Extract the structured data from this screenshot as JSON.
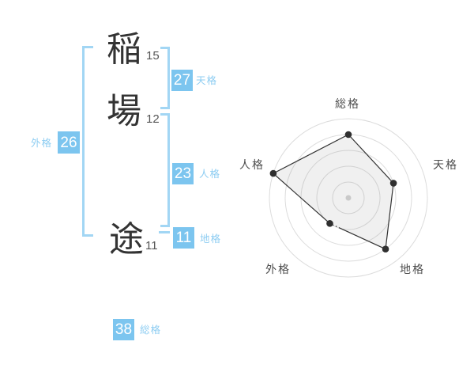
{
  "name_diagram": {
    "characters": [
      {
        "char": "稲",
        "strokes": "15"
      },
      {
        "char": "場",
        "strokes": "12"
      },
      {
        "char": "途",
        "strokes": "11"
      }
    ],
    "kaku": {
      "tenkaku": {
        "value": "27",
        "label": "天格"
      },
      "jinkaku": {
        "value": "23",
        "label": "人格"
      },
      "chikaku": {
        "value": "11",
        "label": "地格"
      },
      "gaikaku": {
        "value": "26",
        "label": "外格"
      },
      "soukaku": {
        "value": "38",
        "label": "総格"
      }
    }
  },
  "colors": {
    "badge_blue": "#7cc5ef",
    "label_blue": "#8ecdf2",
    "bracket_blue": "#a2d6f4",
    "kanji_dark": "#333333",
    "chart_grid": "#dcdcdc",
    "chart_line": "#333333",
    "chart_point": "#2f2f2f",
    "chart_center_dot": "#c9c9c9",
    "chart_label": "#4d4d4d"
  },
  "chart_data": {
    "type": "radar",
    "title": "",
    "categories": [
      "総格",
      "天格",
      "地格",
      "外格",
      "人格"
    ],
    "values": [
      0.8,
      0.6,
      0.8,
      0.4,
      1.0
    ],
    "value_scale": "fraction of outer ring radius (5 evenly spaced rings)",
    "rings": 5,
    "grid": "concentric-circles",
    "legend": "none",
    "fill": "light-gray",
    "dashed_segment": "外格 to 地格 edge starts dotted"
  }
}
